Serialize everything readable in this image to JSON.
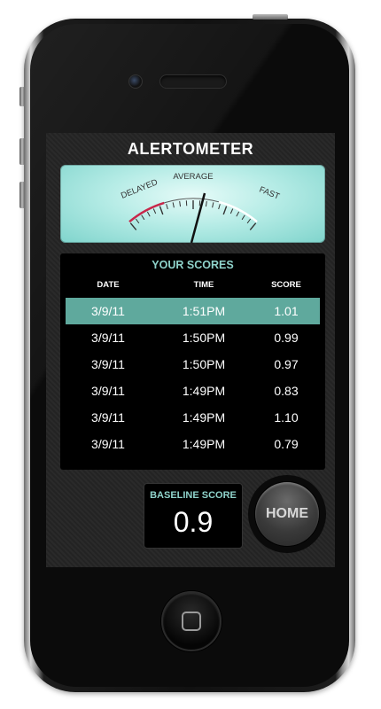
{
  "app": {
    "title": "ALERTOMETER"
  },
  "gauge": {
    "labels": {
      "left": "DELAYED",
      "center": "AVERAGE",
      "right": "FAST"
    },
    "colors": {
      "delayed": "#c8274a",
      "fast": "#ffffff",
      "face": "#a9e8e1",
      "needle": "#111111"
    }
  },
  "scores": {
    "title": "YOUR SCORES",
    "columns": {
      "date": "DATE",
      "time": "TIME",
      "score": "SCORE"
    },
    "rows": [
      {
        "date": "3/9/11",
        "time": "1:51PM",
        "score": "1.01",
        "selected": true
      },
      {
        "date": "3/9/11",
        "time": "1:50PM",
        "score": "0.99",
        "selected": false
      },
      {
        "date": "3/9/11",
        "time": "1:50PM",
        "score": "0.97",
        "selected": false
      },
      {
        "date": "3/9/11",
        "time": "1:49PM",
        "score": "0.83",
        "selected": false
      },
      {
        "date": "3/9/11",
        "time": "1:49PM",
        "score": "1.10",
        "selected": false
      },
      {
        "date": "3/9/11",
        "time": "1:49PM",
        "score": "0.79",
        "selected": false
      }
    ],
    "selected_row_color": "#5fa99d",
    "accent_color": "#8fd3cb"
  },
  "baseline": {
    "label": "BASELINE SCORE",
    "value": "0.9"
  },
  "home_button": {
    "label": "HOME"
  }
}
